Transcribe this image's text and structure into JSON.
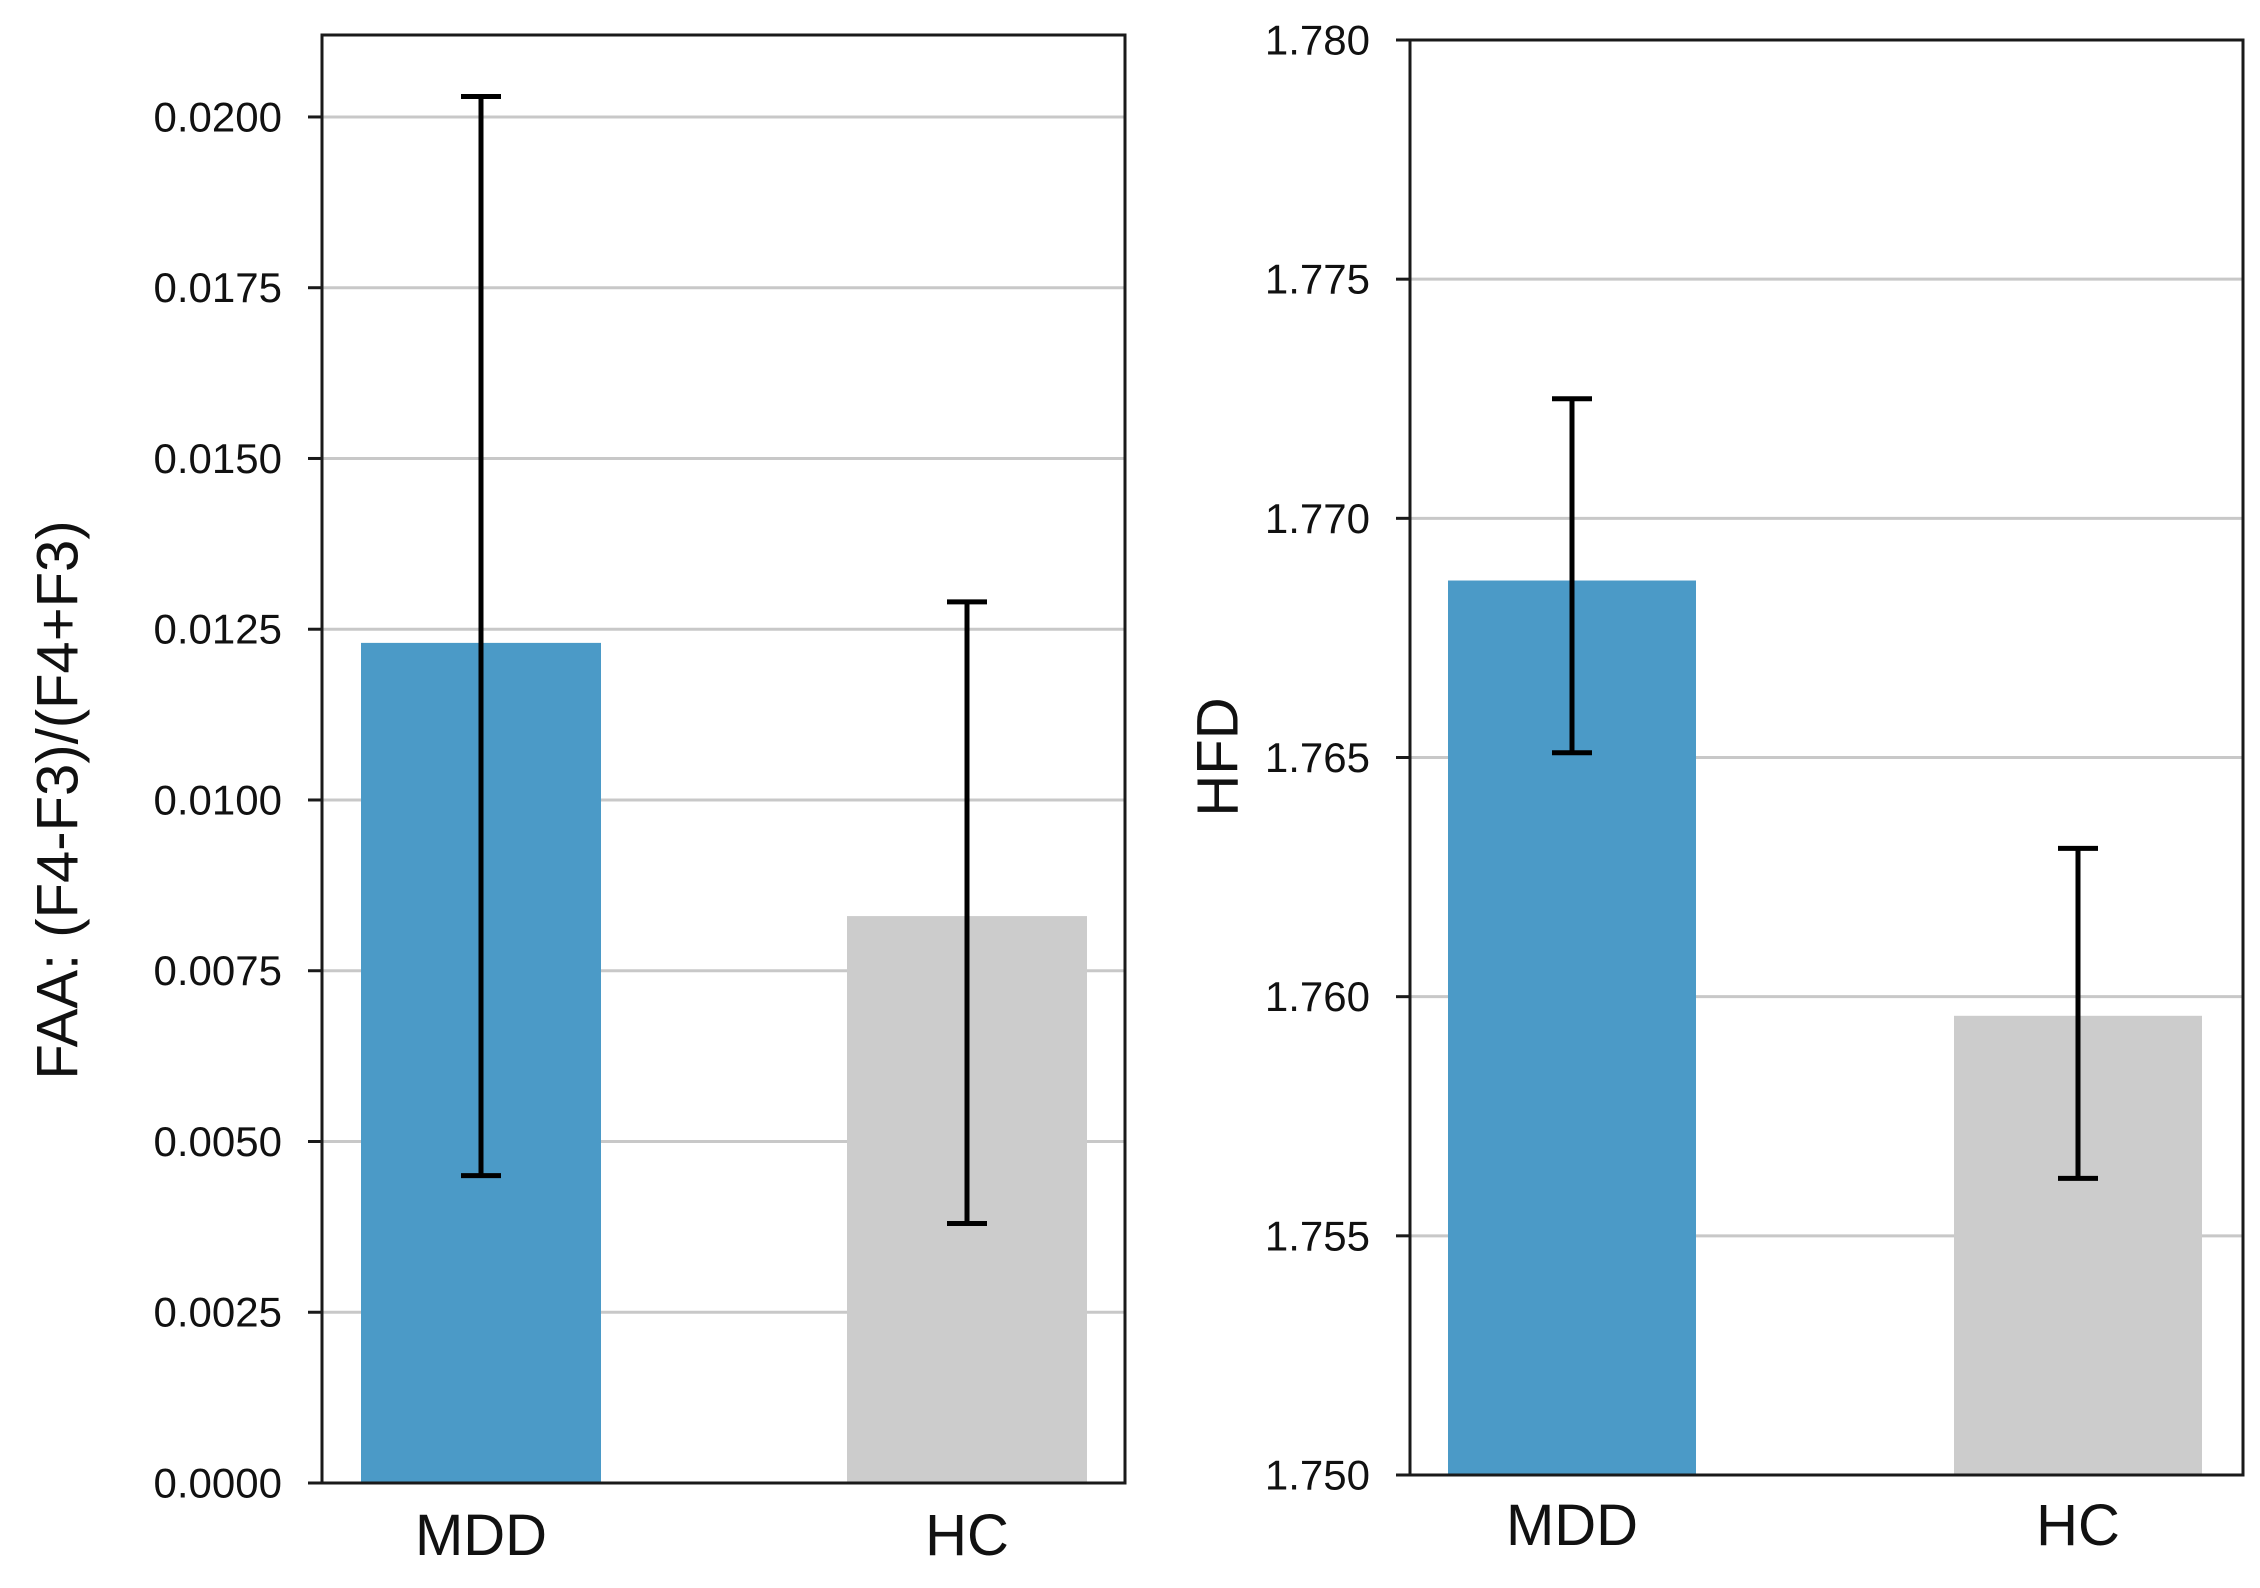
{
  "chart_data": [
    {
      "type": "bar",
      "title": "",
      "xlabel": "",
      "ylabel": "FAA: (F4-F3)/(F4+F3)",
      "categories": [
        "MDD",
        "HC"
      ],
      "values": [
        0.0123,
        0.0083
      ],
      "error_low": [
        0.0045,
        0.0038
      ],
      "error_high": [
        0.0203,
        0.0129
      ],
      "colors": [
        "#4b9ac7",
        "#cccccc"
      ],
      "ylim": [
        0,
        0.0212
      ],
      "yticks": [
        0,
        0.0025,
        0.005,
        0.0075,
        0.01,
        0.0125,
        0.015,
        0.0175,
        0.02
      ],
      "ytick_labels": [
        "0.0000",
        "0.0025",
        "0.0050",
        "0.0075",
        "0.0100",
        "0.0125",
        "0.0150",
        "0.0175",
        "0.0200"
      ],
      "grid": true
    },
    {
      "type": "bar",
      "title": "",
      "xlabel": "",
      "ylabel": "HFD",
      "categories": [
        "MDD",
        "HC"
      ],
      "values": [
        1.7687,
        1.7596
      ],
      "error_low": [
        1.7651,
        1.7562
      ],
      "error_high": [
        1.7725,
        1.7631
      ],
      "colors": [
        "#4b9ac7",
        "#cccccc"
      ],
      "ylim": [
        1.75,
        1.78
      ],
      "yticks": [
        1.75,
        1.755,
        1.76,
        1.765,
        1.77,
        1.775,
        1.78
      ],
      "ytick_labels": [
        "1.750",
        "1.755",
        "1.760",
        "1.765",
        "1.770",
        "1.775",
        "1.780"
      ],
      "grid": true
    }
  ]
}
